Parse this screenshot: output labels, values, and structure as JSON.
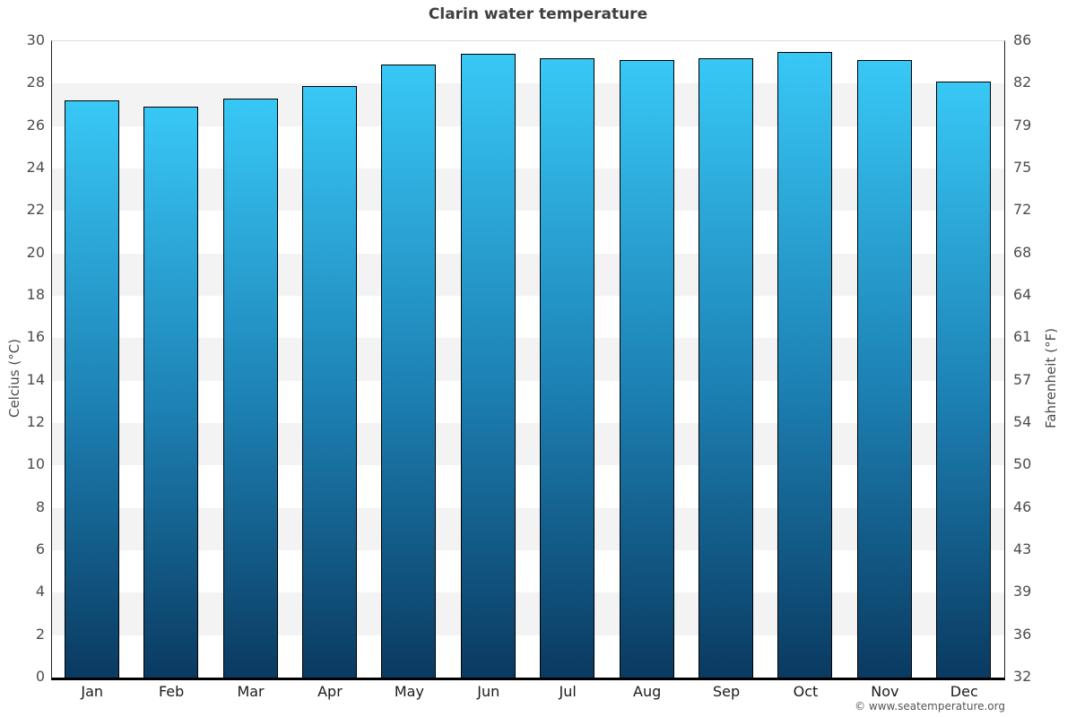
{
  "title": "Clarin water temperature",
  "footer": "© www.seatemperature.org",
  "colors": {
    "bar_gradient_top": "#38c8f6",
    "bar_gradient_mid": "#1d82b5",
    "bar_gradient_bottom": "#0a3a61",
    "bar_border": "#000000",
    "band_gray": "#f3f3f3",
    "axis_line": "#222222",
    "bottom_axis_line": "#000000",
    "tick_label": "#4d4d4d",
    "month_label": "#1a1a1a",
    "title_color": "#3f3f3f"
  },
  "chart_data": {
    "type": "bar",
    "title": "Clarin water temperature",
    "categories": [
      "Jan",
      "Feb",
      "Mar",
      "Apr",
      "May",
      "Jun",
      "Jul",
      "Aug",
      "Sep",
      "Oct",
      "Nov",
      "Dec"
    ],
    "values_celsius": [
      27.2,
      26.9,
      27.3,
      27.9,
      28.9,
      29.4,
      29.2,
      29.1,
      29.2,
      29.5,
      29.1,
      28.1
    ],
    "values_fahrenheit": [
      81.0,
      80.4,
      81.1,
      82.2,
      84.0,
      84.9,
      84.6,
      84.4,
      84.6,
      85.1,
      84.4,
      82.6
    ],
    "ylabel_left": "Celcius (°C)",
    "ylabel_right": "Fahrenheit (°F)",
    "xlabel": "",
    "ylim_celsius": [
      0,
      30
    ],
    "ylim_fahrenheit": [
      32,
      86
    ],
    "celsius_ticks": [
      30,
      28,
      26,
      24,
      22,
      20,
      18,
      16,
      14,
      12,
      10,
      8,
      6,
      4,
      2,
      0
    ],
    "fahrenheit_tick_labels": [
      "86",
      "82",
      "79",
      "75",
      "72",
      "68",
      "64",
      "61",
      "57",
      "54",
      "50",
      "46",
      "43",
      "39",
      "36",
      "32"
    ],
    "grid": "alternating horizontal gray bands every 2°C (white at top 30–28, gray 28–26, ...)",
    "legend": "none"
  }
}
